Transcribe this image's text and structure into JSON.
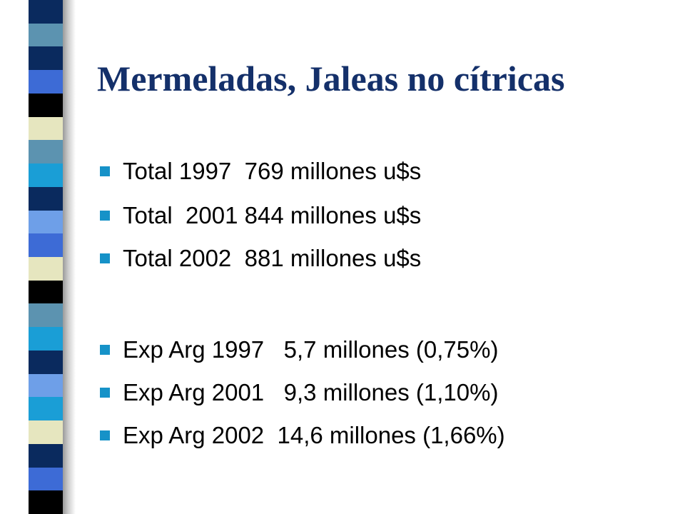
{
  "slide": {
    "title": "Mermeladas, Jaleas no cítricas",
    "bullets": [
      "Total 1997  769 millones u$s",
      "Total  2001 844 millones u$s",
      "Total 2002  881 millones u$s",
      "Exp Arg 1997   5,7 millones (0,75%)",
      "Exp Arg 2001   9,3 millones (1,10%)",
      "Exp Arg 2002  14,6 millones (1,66%)"
    ]
  },
  "colors": {
    "title": "#14306a",
    "bullet_marker": "#1692c8",
    "body_text": "#000000",
    "stripe_palette": [
      "#0a2a5e",
      "#1a9ed6",
      "#3d6bd6",
      "#6e9fe8",
      "#5c93b0",
      "#e6e6bf",
      "#000000"
    ]
  },
  "decoration": {
    "stripe_sequence": [
      "#0a2a5e",
      "#5c93b0",
      "#0a2a5e",
      "#3d6bd6",
      "#000000",
      "#e6e6bf",
      "#5c93b0",
      "#1a9ed6",
      "#0a2a5e",
      "#6e9fe8",
      "#3d6bd6",
      "#e6e6bf",
      "#000000",
      "#5c93b0",
      "#1a9ed6",
      "#0a2a5e",
      "#6e9fe8",
      "#1a9ed6",
      "#e6e6bf",
      "#0a2a5e",
      "#3d6bd6",
      "#000000"
    ]
  }
}
